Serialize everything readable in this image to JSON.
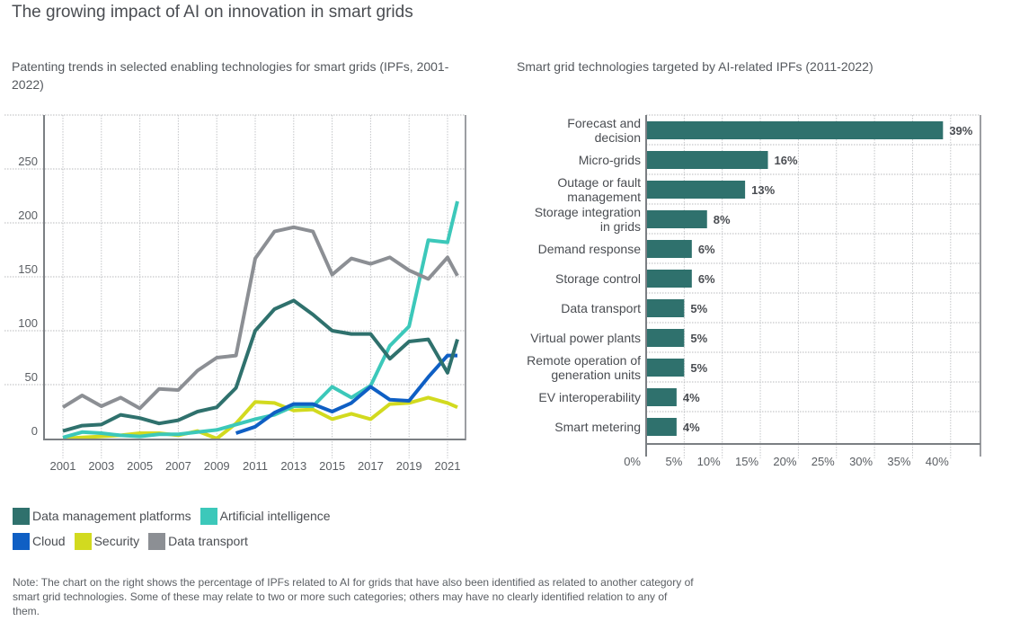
{
  "header": {
    "title": "The growing impact of AI on innovation in smart grids",
    "left_subtitle": "Patenting trends in selected enabling technologies for smart grids (IPFs, 2001-2022)",
    "right_subtitle": "Smart grid technologies targeted by AI-related IPFs (2011-2022)"
  },
  "colors": {
    "data_management": "#2f716d",
    "ai": "#3cc8ba",
    "cloud": "#0f5fc4",
    "security": "#d2da1f",
    "data_transport": "#8c8f94",
    "bar": "#2f716d"
  },
  "legend": [
    {
      "label": "Data management platforms",
      "color_key": "data_management"
    },
    {
      "label": "Artificial intelligence",
      "color_key": "ai"
    },
    {
      "label": "Cloud",
      "color_key": "cloud"
    },
    {
      "label": "Security",
      "color_key": "security"
    },
    {
      "label": "Data transport",
      "color_key": "data_transport"
    }
  ],
  "note": "Note: The chart on the right shows the percentage of IPFs related to AI for grids that have also been identified as related to another category of smart grid technologies. Some of these may relate to two or more such categories; others may have no clearly identified relation to any of them.",
  "chart_data": [
    {
      "type": "line",
      "title": "Patenting trends in selected enabling technologies for smart grids (IPFs, 2001-2022)",
      "xlabel": "",
      "ylabel": "",
      "x": [
        2001,
        2002,
        2003,
        2004,
        2005,
        2006,
        2007,
        2008,
        2009,
        2010,
        2011,
        2012,
        2013,
        2014,
        2015,
        2016,
        2017,
        2018,
        2019,
        2020,
        2021,
        2022
      ],
      "xticks": [
        "2001",
        "2003",
        "2005",
        "2007",
        "2009",
        "2011",
        "2013",
        "2015",
        "2017",
        "2019",
        "2021"
      ],
      "yticks": [
        "0",
        "50",
        "100",
        "150",
        "200",
        "250"
      ],
      "ylim": [
        0,
        280
      ],
      "grid": true,
      "legend_position": "bottom",
      "series": [
        {
          "name": "Data management platforms",
          "color_key": "data_management",
          "start_year": 2001,
          "values": [
            7,
            12,
            13,
            22,
            19,
            14,
            17,
            25,
            29,
            47,
            100,
            120,
            128,
            115,
            100,
            97,
            97,
            74,
            90,
            92,
            61,
            92
          ]
        },
        {
          "name": "Artificial intelligence",
          "color_key": "ai",
          "start_year": 2001,
          "values": [
            1,
            6,
            5,
            3,
            2,
            4,
            4,
            6,
            8,
            13,
            18,
            22,
            30,
            30,
            48,
            38,
            49,
            86,
            104,
            184,
            182,
            220
          ]
        },
        {
          "name": "Cloud",
          "color_key": "cloud",
          "start_year": 2010,
          "values": [
            5,
            11,
            24,
            32,
            32,
            25,
            33,
            48,
            36,
            35,
            57,
            77,
            77
          ]
        },
        {
          "name": "Security",
          "color_key": "security",
          "start_year": 2001,
          "values": [
            0,
            1,
            2,
            3,
            5,
            5,
            3,
            7,
            0,
            14,
            34,
            33,
            26,
            27,
            18,
            23,
            18,
            32,
            33,
            38,
            33,
            29
          ]
        },
        {
          "name": "Data transport",
          "color_key": "data_transport",
          "start_year": 2001,
          "values": [
            29,
            40,
            30,
            38,
            28,
            46,
            45,
            63,
            75,
            77,
            167,
            192,
            196,
            192,
            152,
            167,
            162,
            168,
            156,
            148,
            168,
            151
          ]
        }
      ]
    },
    {
      "type": "bar",
      "orientation": "horizontal",
      "title": "Smart grid technologies targeted by AI-related IPFs (2011-2022)",
      "categories": [
        [
          "Forecast and",
          "decision"
        ],
        [
          "Micro-grids"
        ],
        [
          "Outage or fault",
          "management"
        ],
        [
          "Storage integration",
          "in grids"
        ],
        [
          "Demand response"
        ],
        [
          "Storage control"
        ],
        [
          "Data transport"
        ],
        [
          "Virtual power plants"
        ],
        [
          "Remote operation of",
          "generation units"
        ],
        [
          "EV interoperability"
        ],
        [
          "Smart metering"
        ]
      ],
      "values": [
        39,
        16,
        13,
        8,
        6,
        6,
        5,
        5,
        5,
        4,
        4
      ],
      "value_labels": [
        "39%",
        "16%",
        "13%",
        "8%",
        "6%",
        "6%",
        "5%",
        "5%",
        "5%",
        "4%",
        "4%"
      ],
      "xticks": [
        "0%",
        "5%",
        "10%",
        "15%",
        "20%",
        "25%",
        "30%",
        "35%",
        "40%"
      ],
      "xlim": [
        0,
        44
      ],
      "grid": true
    }
  ]
}
